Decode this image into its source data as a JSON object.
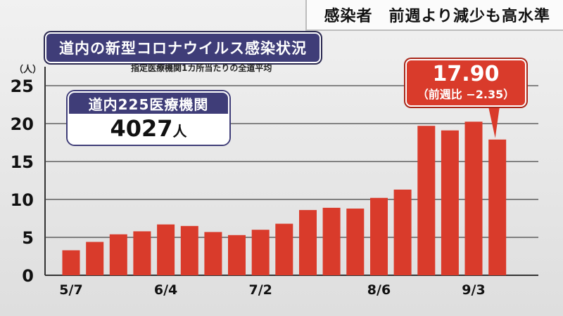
{
  "headline": "感染者　前週より減少も高水準",
  "chart_title": "道内の新型コロナウイルス感染状況",
  "chart_subtitle": "指定医療機関1カ所当たりの全道平均",
  "y_unit": "（人）",
  "info_box": {
    "label": "道内225医療機関",
    "value": "4027",
    "unit": "人"
  },
  "callout": {
    "value": "17.90",
    "sub": "（前週比 −2.35）"
  },
  "colors": {
    "bar": "#d93b2b",
    "navy": "#3f3d78"
  },
  "chart_data": {
    "type": "bar",
    "title": "道内の新型コロナウイルス感染状況",
    "subtitle": "指定医療機関1カ所当たりの全道平均",
    "ylabel": "（人）",
    "xlabel": "",
    "ylim": [
      0,
      25
    ],
    "yticks": [
      0,
      5,
      10,
      15,
      20,
      25
    ],
    "grid": true,
    "categories": [
      "5/7",
      "",
      "",
      "",
      "6/4",
      "",
      "",
      "",
      "7/2",
      "",
      "",
      "",
      "",
      "8/6",
      "",
      "",
      "",
      "9/3",
      ""
    ],
    "x_tick_labels": [
      "5/7",
      "6/4",
      "7/2",
      "8/6",
      "9/3"
    ],
    "values": [
      3.3,
      4.4,
      5.4,
      5.8,
      6.7,
      6.5,
      5.7,
      5.3,
      6.0,
      6.8,
      8.6,
      8.9,
      8.8,
      10.2,
      11.3,
      19.7,
      19.1,
      20.25,
      17.9
    ]
  }
}
